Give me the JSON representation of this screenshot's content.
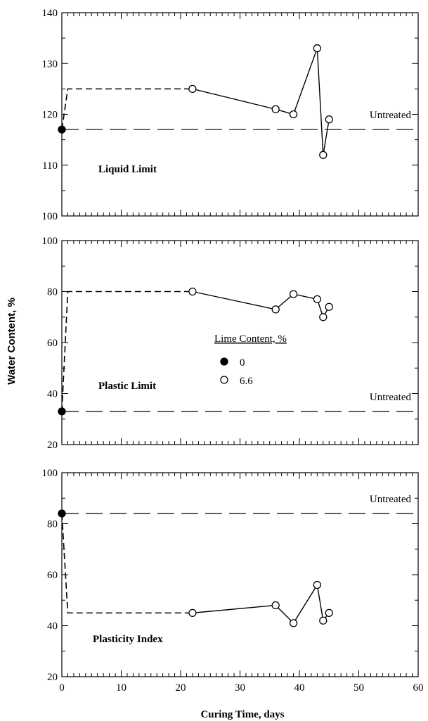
{
  "chart_data": [
    {
      "type": "line",
      "panel_label": "Liquid Limit",
      "ylim": [
        100,
        140
      ],
      "yticks": [
        100,
        110,
        120,
        130,
        140
      ],
      "xlim": [
        0,
        60
      ],
      "untreated_value": 117,
      "untreated_label": "Untreated",
      "series": [
        {
          "lime_content": "0",
          "marker": "filled",
          "x": [
            0
          ],
          "y": [
            117
          ]
        },
        {
          "lime_content": "6.6",
          "marker": "open",
          "x": [
            22,
            36,
            39,
            43,
            44,
            45
          ],
          "y": [
            125,
            121,
            120,
            133,
            112,
            119
          ]
        }
      ],
      "transition_dashed": {
        "x": [
          0,
          1,
          22
        ],
        "y": [
          117,
          125,
          125
        ]
      }
    },
    {
      "type": "line",
      "panel_label": "Plastic Limit",
      "ylim": [
        20,
        100
      ],
      "yticks": [
        20,
        40,
        60,
        80,
        100
      ],
      "xlim": [
        0,
        60
      ],
      "untreated_value": 33,
      "untreated_label": "Untreated",
      "series": [
        {
          "lime_content": "0",
          "marker": "filled",
          "x": [
            0
          ],
          "y": [
            33
          ]
        },
        {
          "lime_content": "6.6",
          "marker": "open",
          "x": [
            22,
            36,
            39,
            43,
            44,
            45
          ],
          "y": [
            80,
            73,
            79,
            77,
            70,
            74
          ]
        }
      ],
      "transition_dashed": {
        "x": [
          0,
          1,
          22
        ],
        "y": [
          33,
          80,
          80
        ]
      }
    },
    {
      "type": "line",
      "panel_label": "Plasticity Index",
      "ylim": [
        20,
        100
      ],
      "yticks": [
        20,
        40,
        60,
        80,
        100
      ],
      "xlim": [
        0,
        60
      ],
      "xticks": [
        0,
        10,
        20,
        30,
        40,
        50,
        60
      ],
      "untreated_value": 84,
      "untreated_label": "Untreated",
      "series": [
        {
          "lime_content": "0",
          "marker": "filled",
          "x": [
            0
          ],
          "y": [
            84
          ]
        },
        {
          "lime_content": "6.6",
          "marker": "open",
          "x": [
            22,
            36,
            39,
            43,
            44,
            45
          ],
          "y": [
            45,
            48,
            41,
            56,
            42,
            45
          ]
        }
      ],
      "transition_dashed": {
        "x": [
          0,
          1,
          22
        ],
        "y": [
          84,
          45,
          45
        ]
      }
    }
  ],
  "legend": {
    "title": "Lime Content, %",
    "entries": [
      {
        "label": "0",
        "marker": "filled"
      },
      {
        "label": "6.6",
        "marker": "open"
      }
    ]
  },
  "xlabel": "Curing Time, days",
  "ylabel": "Water Content, %",
  "colors": {
    "ink": "#000000",
    "background": "#ffffff"
  }
}
